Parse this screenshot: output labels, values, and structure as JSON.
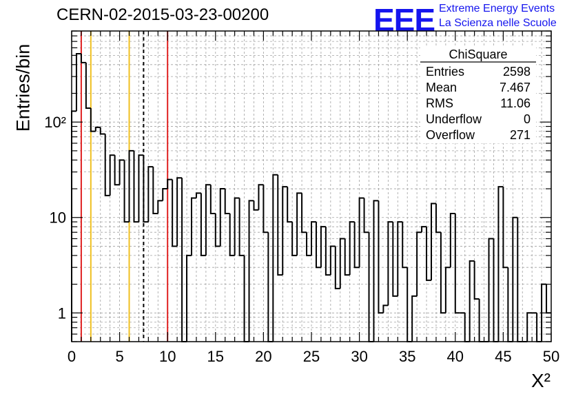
{
  "header": {
    "run_id": "CERN-02-2015-03-23-00200",
    "logo_text": "EEE",
    "org_line1": "Extreme Energy Events",
    "org_line2": "La Scienza nelle Scuole"
  },
  "stats": {
    "title": "ChiSquare",
    "rows": [
      {
        "label": "Entries",
        "value": "2598"
      },
      {
        "label": "Mean",
        "value": "7.467"
      },
      {
        "label": "RMS",
        "value": "11.06"
      },
      {
        "label": "Underflow",
        "value": "0"
      },
      {
        "label": "Overflow",
        "value": "271"
      }
    ]
  },
  "colors": {
    "red_line": "#e02020",
    "yellow_line": "#f0c020",
    "logo": "#1515ee",
    "grid": "#a0a0a0"
  },
  "chart_data": {
    "type": "bar",
    "style": "step-histogram",
    "title": "",
    "xlabel": "X²",
    "ylabel": "Entries/bin",
    "xlim": [
      0,
      50
    ],
    "ylim": [
      0.5,
      900
    ],
    "y_scale": "log",
    "grid": true,
    "bin_width": 0.5,
    "x_ticks": [
      0,
      5,
      10,
      15,
      20,
      25,
      30,
      35,
      40,
      45,
      50
    ],
    "y_ticks": [
      {
        "value": 1,
        "label": "1"
      },
      {
        "value": 10,
        "label": "10"
      },
      {
        "value": 100,
        "label": "10²"
      }
    ],
    "values": [
      130,
      520,
      420,
      140,
      80,
      88,
      75,
      17,
      45,
      22,
      40,
      9,
      50,
      9,
      45,
      9,
      34,
      11,
      15,
      20,
      25,
      5,
      26,
      0,
      4,
      16,
      18,
      4,
      22,
      11,
      5,
      20,
      11,
      4,
      16,
      4,
      0,
      15,
      12,
      22,
      7,
      0,
      28,
      2.5,
      21,
      9,
      4,
      18,
      7,
      4,
      9,
      3,
      8,
      2.5,
      5,
      1.8,
      6,
      2.5,
      9,
      3,
      16,
      7,
      0,
      15,
      1,
      1.2,
      9,
      1.5,
      9,
      3,
      0,
      1.5,
      7,
      8,
      2.2,
      14,
      7,
      1,
      3,
      11,
      1,
      1,
      0,
      3.5,
      1.4,
      0,
      0,
      6,
      0,
      21,
      3,
      0,
      10,
      0,
      0,
      1,
      1,
      0,
      2,
      1
    ],
    "vlines": [
      {
        "x": 1.0,
        "style": "red"
      },
      {
        "x": 2.0,
        "style": "yellow"
      },
      {
        "x": 6.0,
        "style": "yellow"
      },
      {
        "x": 7.5,
        "style": "black-dashed"
      },
      {
        "x": 10.0,
        "style": "red"
      }
    ]
  }
}
